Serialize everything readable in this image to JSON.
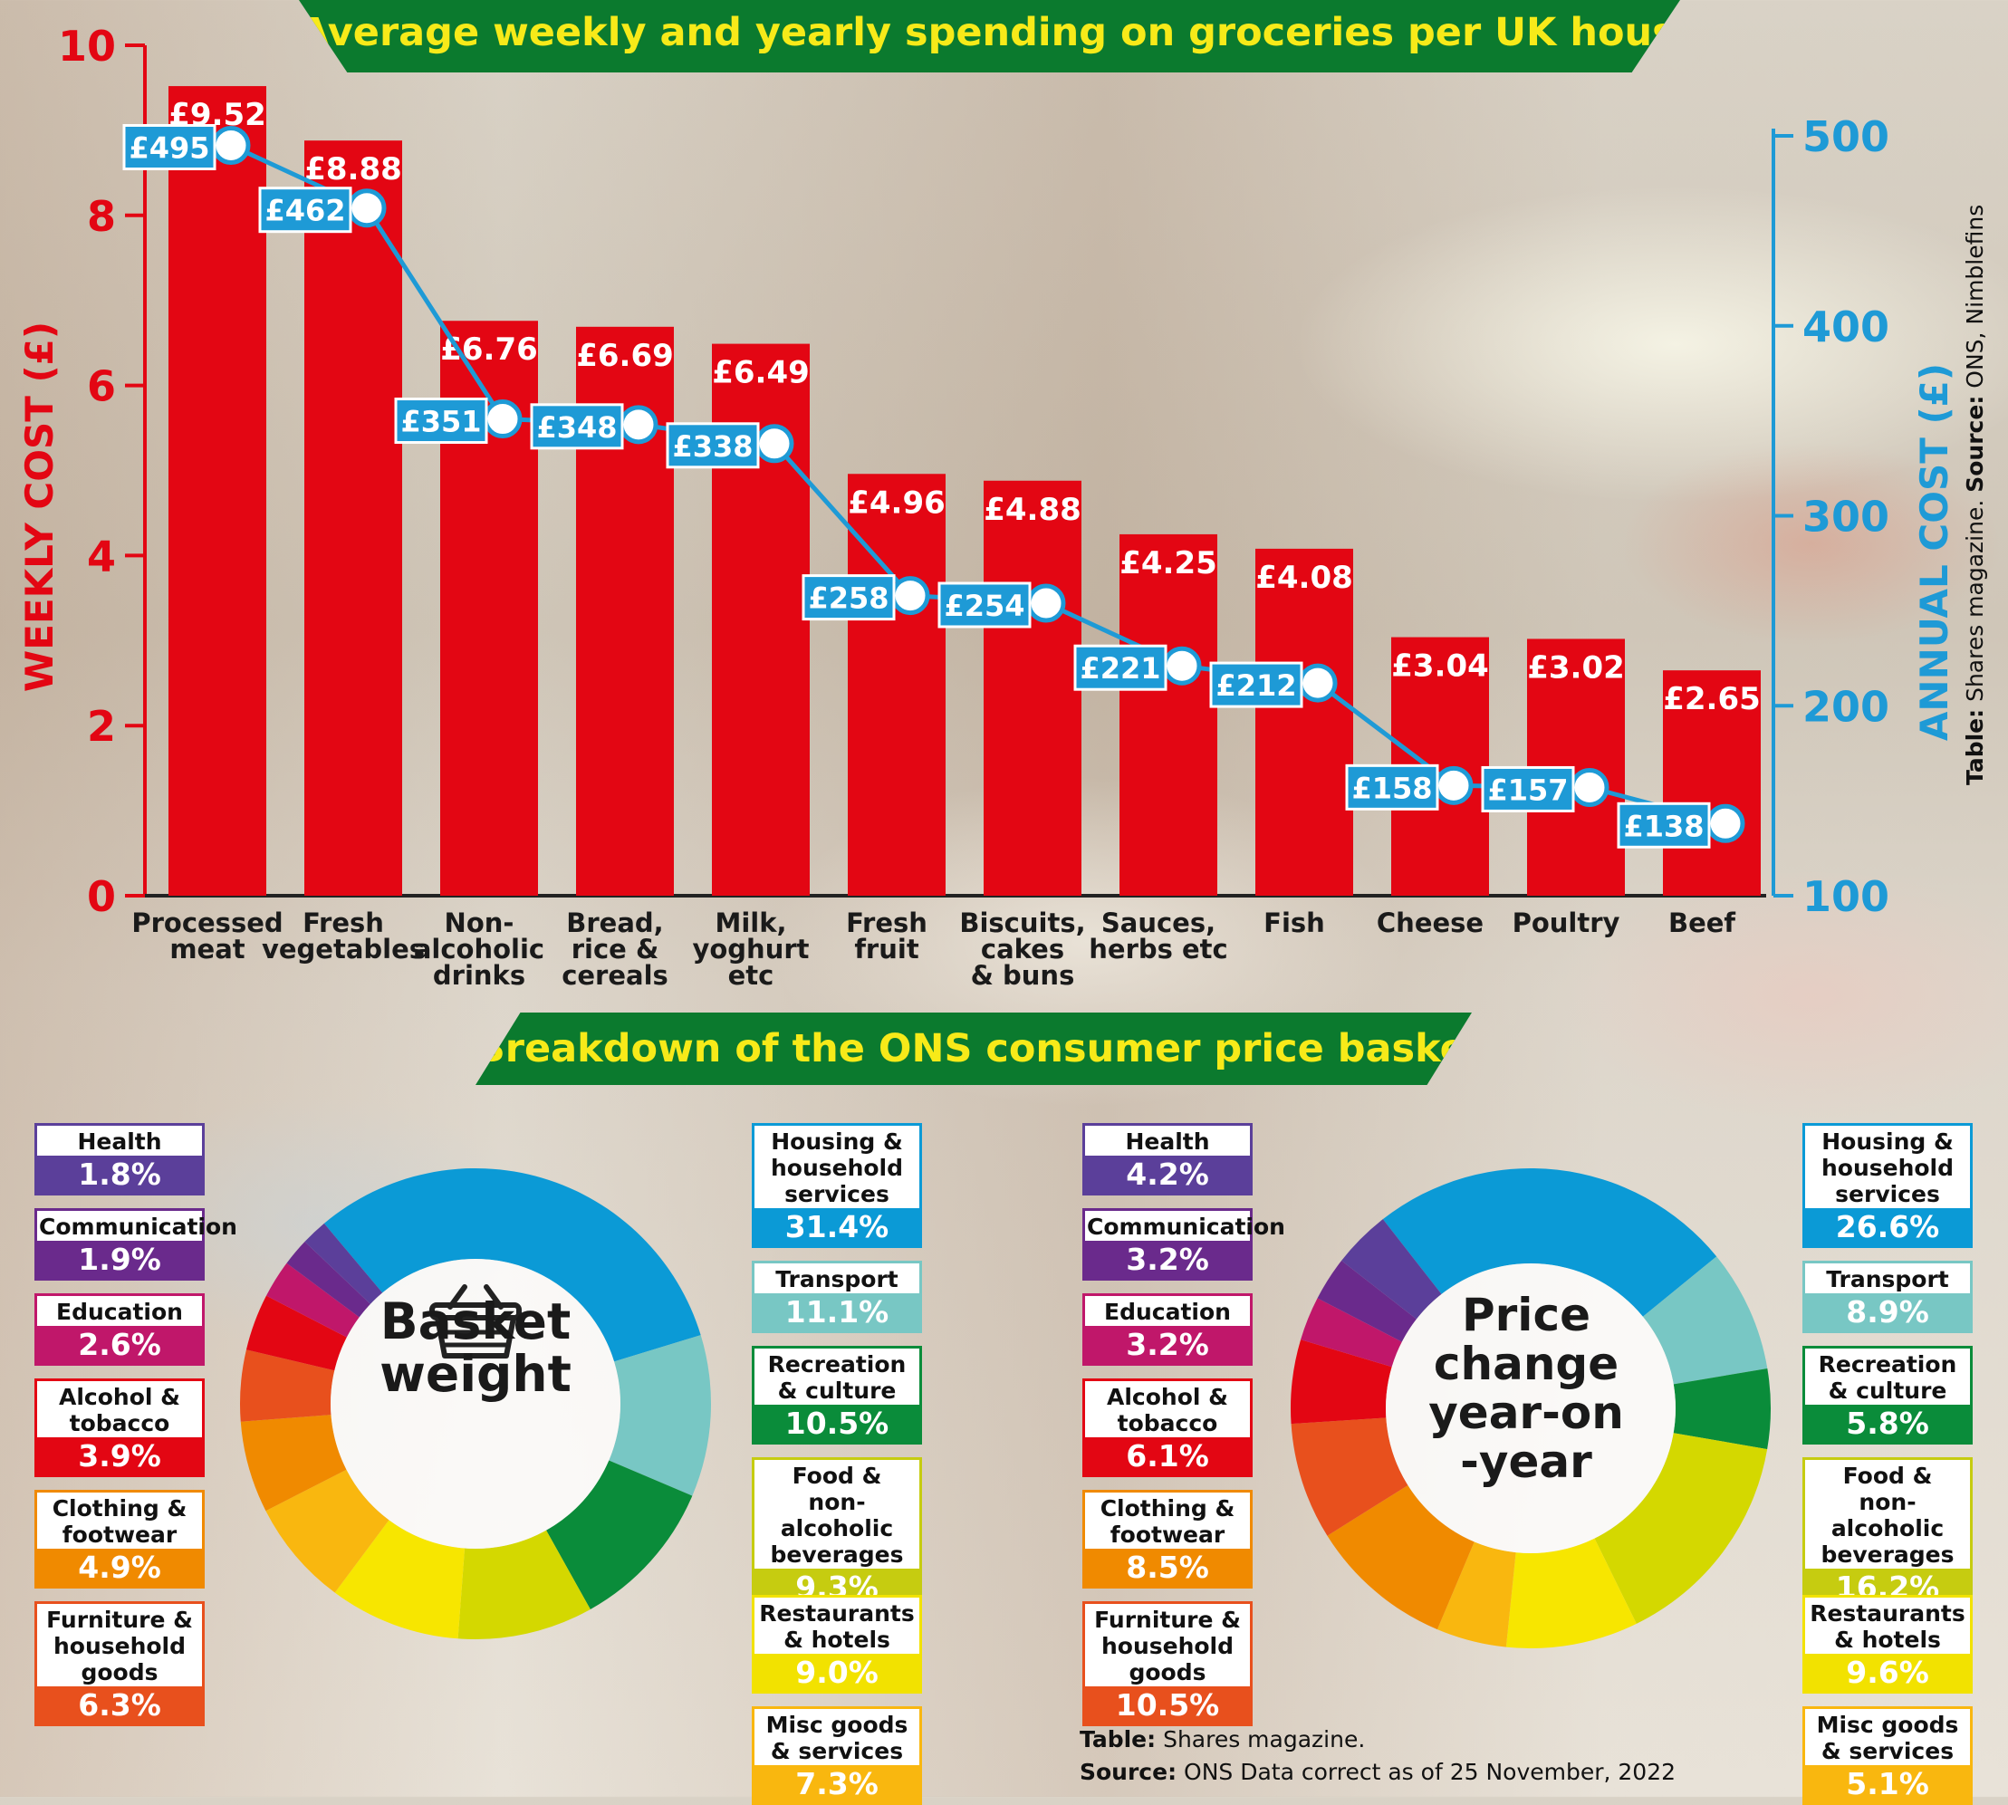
{
  "header": {
    "title": "Average weekly and yearly spending on groceries per UK household",
    "subtitle": "Breakdown of the ONS consumer price basket"
  },
  "colors": {
    "bar": "#e30613",
    "line": "#1e9ad6",
    "banner": "#0b7a2e",
    "banner_text": "#f7ea19"
  },
  "chart_data": [
    {
      "type": "bar",
      "title": "Average weekly and yearly spending on groceries per UK household",
      "categories": [
        [
          "Processed",
          "meat"
        ],
        [
          "Fresh",
          "vegetables"
        ],
        [
          "Non-",
          "alcoholic",
          "drinks"
        ],
        [
          "Bread,",
          "rice &",
          "cereals"
        ],
        [
          "Milk,",
          "yoghurt",
          "etc"
        ],
        [
          "Fresh",
          "fruit"
        ],
        [
          "Biscuits,",
          "cakes",
          "& buns"
        ],
        [
          "Sauces,",
          "herbs etc"
        ],
        [
          "Fish"
        ],
        [
          "Cheese"
        ],
        [
          "Poultry"
        ],
        [
          "Beef"
        ]
      ],
      "series": [
        {
          "name": "Weekly cost",
          "axis": "left",
          "type": "bar",
          "values": [
            9.52,
            8.88,
            6.76,
            6.69,
            6.49,
            4.96,
            4.88,
            4.25,
            4.08,
            3.04,
            3.02,
            2.65
          ],
          "labels": [
            "£9.52",
            "£8.88",
            "£6.76",
            "£6.69",
            "£6.49",
            "£4.96",
            "£4.88",
            "£4.25",
            "£4.08",
            "£3.04",
            "£3.02",
            "£2.65"
          ]
        },
        {
          "name": "Annual cost",
          "axis": "right",
          "type": "line",
          "values": [
            495,
            462,
            351,
            348,
            338,
            258,
            254,
            221,
            212,
            158,
            157,
            138
          ],
          "labels": [
            "£495",
            "£462",
            "£351",
            "£348",
            "£338",
            "£258",
            "£254",
            "£221",
            "£212",
            "£158",
            "£157",
            "£138"
          ]
        }
      ],
      "ylabel": "WEEKLY COST (£)",
      "ylabel_right": "ANNUAL COST (£)",
      "ylim": [
        0,
        10
      ],
      "ylim_right": [
        100,
        500
      ],
      "yticks": [
        0,
        2,
        4,
        6,
        8,
        10
      ],
      "yticks_right": [
        100,
        200,
        300,
        400,
        500
      ]
    },
    {
      "type": "pie",
      "title": "Basket weight",
      "center_icon": "shopping-basket-icon",
      "slices": [
        {
          "label": "Housing & household services",
          "value": 31.4,
          "color": "#0b9ad6"
        },
        {
          "label": "Transport",
          "value": 11.1,
          "color": "#78c7c4"
        },
        {
          "label": "Recreation & culture",
          "value": 10.5,
          "color": "#0a8c3a"
        },
        {
          "label": "Food & non- alcoholic beverages",
          "value": 9.3,
          "color": "#d4d800"
        },
        {
          "label": "Restaurants & hotels",
          "value": 9.0,
          "color": "#f7e600"
        },
        {
          "label": "Misc goods & services",
          "value": 7.3,
          "color": "#f9b70f"
        },
        {
          "label": "Furniture & household goods",
          "value": 6.3,
          "color": "#f08a00"
        },
        {
          "label": "Clothing & footwear",
          "value": 4.9,
          "color": "#e8501d"
        },
        {
          "label": "Alcohol & tobacco",
          "value": 3.9,
          "color": "#e30613"
        },
        {
          "label": "Education",
          "value": 2.6,
          "color": "#c0176a"
        },
        {
          "label": "Communication",
          "value": 1.9,
          "color": "#6a2a8c"
        },
        {
          "label": "Health",
          "value": 1.8,
          "color": "#5b3f9a"
        }
      ]
    },
    {
      "type": "pie",
      "title": "Price change year-on -year",
      "slices": [
        {
          "label": "Housing & household services",
          "value": 26.6,
          "color": "#0b9ad6"
        },
        {
          "label": "Transport",
          "value": 8.9,
          "color": "#78c7c4"
        },
        {
          "label": "Recreation & culture",
          "value": 5.8,
          "color": "#0a8c3a"
        },
        {
          "label": "Food & non- alcoholic beverages",
          "value": 16.2,
          "color": "#d4d800"
        },
        {
          "label": "Restaurants & hotels",
          "value": 9.6,
          "color": "#f7e600"
        },
        {
          "label": "Misc goods & services",
          "value": 5.1,
          "color": "#f9b70f"
        },
        {
          "label": "Furniture & household goods",
          "value": 10.5,
          "color": "#f08a00"
        },
        {
          "label": "Clothing & footwear",
          "value": 8.5,
          "color": "#e8501d"
        },
        {
          "label": "Alcohol & tobacco",
          "value": 6.1,
          "color": "#e30613"
        },
        {
          "label": "Education",
          "value": 3.2,
          "color": "#c0176a"
        },
        {
          "label": "Communication",
          "value": 3.2,
          "color": "#6a2a8c"
        },
        {
          "label": "Health",
          "value": 4.2,
          "color": "#5b3f9a"
        }
      ]
    }
  ],
  "legends": {
    "basket_left": [
      {
        "label": [
          "Health"
        ],
        "value": "1.8%",
        "color": "#5b3f9a"
      },
      {
        "label": [
          "Communication"
        ],
        "value": "1.9%",
        "color": "#6a2a8c"
      },
      {
        "label": [
          "Education"
        ],
        "value": "2.6%",
        "color": "#c0176a"
      },
      {
        "label": [
          "Alcohol &",
          "tobacco"
        ],
        "value": "3.9%",
        "color": "#e30613"
      },
      {
        "label": [
          "Clothing &",
          "footwear"
        ],
        "value": "4.9%",
        "color": "#f08a00"
      },
      {
        "label": [
          "Furniture &",
          "household",
          "goods"
        ],
        "value": "6.3%",
        "color": "#e8501d"
      }
    ],
    "basket_right": [
      {
        "label": [
          "Housing &",
          "household",
          "services"
        ],
        "value": "31.4%",
        "color": "#0b9ad6"
      },
      {
        "label": [
          "Transport"
        ],
        "value": "11.1%",
        "color": "#78c7c4"
      },
      {
        "label": [
          "Recreation",
          "& culture"
        ],
        "value": "10.5%",
        "color": "#0a8c3a"
      },
      {
        "label": [
          "Food &",
          "non- alcoholic",
          "beverages"
        ],
        "value": "9.3%",
        "color": "#c6cc10"
      },
      {
        "label": [
          "Restaurants",
          "& hotels"
        ],
        "value": "9.0%",
        "color": "#f2e200"
      },
      {
        "label": [
          "Misc goods",
          "& services"
        ],
        "value": "7.3%",
        "color": "#f9b70f"
      }
    ],
    "change_left": [
      {
        "label": [
          "Health"
        ],
        "value": "4.2%",
        "color": "#5b3f9a"
      },
      {
        "label": [
          "Communication"
        ],
        "value": "3.2%",
        "color": "#6a2a8c"
      },
      {
        "label": [
          "Education"
        ],
        "value": "3.2%",
        "color": "#c0176a"
      },
      {
        "label": [
          "Alcohol &",
          "tobacco"
        ],
        "value": "6.1%",
        "color": "#e30613"
      },
      {
        "label": [
          "Clothing &",
          "footwear"
        ],
        "value": "8.5%",
        "color": "#f08a00"
      },
      {
        "label": [
          "Furniture &",
          "household",
          "goods"
        ],
        "value": "10.5%",
        "color": "#e8501d"
      }
    ],
    "change_right": [
      {
        "label": [
          "Housing &",
          "household",
          "services"
        ],
        "value": "26.6%",
        "color": "#0b9ad6"
      },
      {
        "label": [
          "Transport"
        ],
        "value": "8.9%",
        "color": "#78c7c4"
      },
      {
        "label": [
          "Recreation",
          "& culture"
        ],
        "value": "5.8%",
        "color": "#0a8c3a"
      },
      {
        "label": [
          "Food &",
          "non- alcoholic",
          "beverages"
        ],
        "value": "16.2%",
        "color": "#c6cc10"
      },
      {
        "label": [
          "Restaurants",
          "& hotels"
        ],
        "value": "9.6%",
        "color": "#f2e200"
      },
      {
        "label": [
          "Misc goods",
          "& services"
        ],
        "value": "5.1%",
        "color": "#f9b70f"
      }
    ]
  },
  "donuts": {
    "basket_center": [
      "Basket",
      "weight"
    ],
    "change_center": [
      "Price",
      "change",
      "year-on",
      "-year"
    ]
  },
  "credits": {
    "side_label": "Table:",
    "side_text": " Shares magazine. ",
    "side_source_label": "Source:",
    "side_source_text": " ONS, Nimblefins",
    "footer_table_label": "Table:",
    "footer_table_text": " Shares magazine.",
    "footer_source_label": "Source:",
    "footer_source_text": " ONS Data correct as of 25 November, 2022"
  }
}
